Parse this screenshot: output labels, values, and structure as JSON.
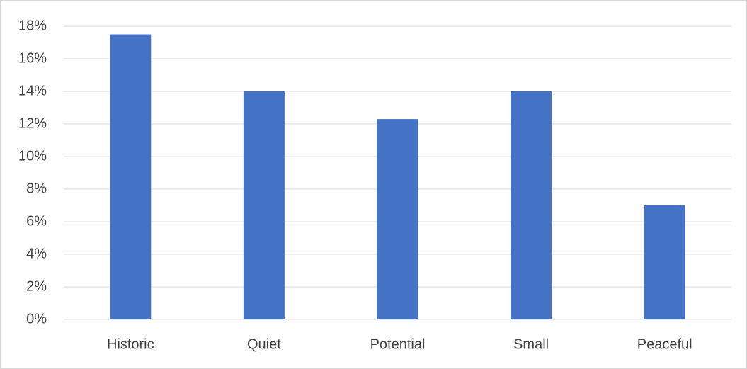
{
  "chart_data": {
    "type": "bar",
    "categories": [
      "Historic",
      "Quiet",
      "Potential",
      "Small",
      "Peaceful"
    ],
    "values": [
      17.5,
      14,
      12.3,
      14,
      7
    ],
    "color": "#4472c4",
    "ylim": [
      0,
      18
    ],
    "yticks": [
      {
        "value": 0,
        "label": "0%"
      },
      {
        "value": 2,
        "label": "2%"
      },
      {
        "value": 4,
        "label": "4%"
      },
      {
        "value": 6,
        "label": "6%"
      },
      {
        "value": 8,
        "label": "8%"
      },
      {
        "value": 10,
        "label": "10%"
      },
      {
        "value": 12,
        "label": "12%"
      },
      {
        "value": 14,
        "label": "14%"
      },
      {
        "value": 16,
        "label": "16%"
      },
      {
        "value": 18,
        "label": "18%"
      }
    ],
    "grid": true
  }
}
